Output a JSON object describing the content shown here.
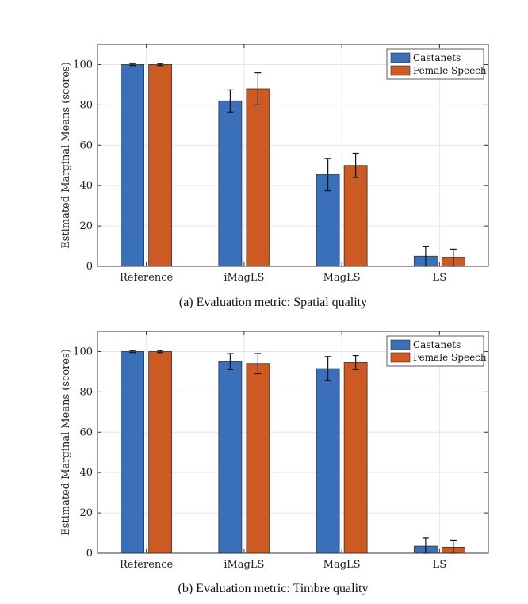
{
  "colors": {
    "castanets": "#3a6fba",
    "female_speech": "#cc5a22",
    "axis": "#333333",
    "grid": "#e6e6e6",
    "errorbar": "#111111"
  },
  "chart_data": [
    {
      "type": "bar",
      "caption": "(a) Evaluation metric: Spatial quality",
      "ylabel": "Estimated Marginal Means (scores)",
      "xlabel": "",
      "ylim": [
        0,
        110
      ],
      "yticks": [
        0,
        20,
        40,
        60,
        80,
        100
      ],
      "grid": true,
      "legend_position": "top-right",
      "categories": [
        "Reference",
        "iMagLS",
        "MagLS",
        "LS"
      ],
      "series": [
        {
          "name": "Castanets",
          "color": "#3a6fba",
          "values": [
            100,
            82,
            45.5,
            5
          ],
          "error_low": [
            99.5,
            76.5,
            37.5,
            0
          ],
          "error_high": [
            100.5,
            87.5,
            53.5,
            10
          ]
        },
        {
          "name": "Female Speech",
          "color": "#cc5a22",
          "values": [
            100,
            88,
            50,
            4.5
          ],
          "error_low": [
            99.5,
            80,
            44,
            0
          ],
          "error_high": [
            100.5,
            96,
            56,
            8.5
          ]
        }
      ]
    },
    {
      "type": "bar",
      "caption": "(b) Evaluation metric: Timbre quality",
      "ylabel": "Estimated Marginal Means (scores)",
      "xlabel": "",
      "ylim": [
        0,
        110
      ],
      "yticks": [
        0,
        20,
        40,
        60,
        80,
        100
      ],
      "grid": true,
      "legend_position": "top-right",
      "categories": [
        "Reference",
        "iMagLS",
        "MagLS",
        "LS"
      ],
      "series": [
        {
          "name": "Castanets",
          "color": "#3a6fba",
          "values": [
            100,
            95,
            91.5,
            3.5
          ],
          "error_low": [
            99.5,
            91,
            85.5,
            0
          ],
          "error_high": [
            100.5,
            99,
            97.5,
            7.5
          ]
        },
        {
          "name": "Female Speech",
          "color": "#cc5a22",
          "values": [
            100,
            94,
            94.5,
            3
          ],
          "error_low": [
            99.5,
            89,
            91,
            0
          ],
          "error_high": [
            100.5,
            99,
            98,
            6.5
          ]
        }
      ]
    }
  ]
}
